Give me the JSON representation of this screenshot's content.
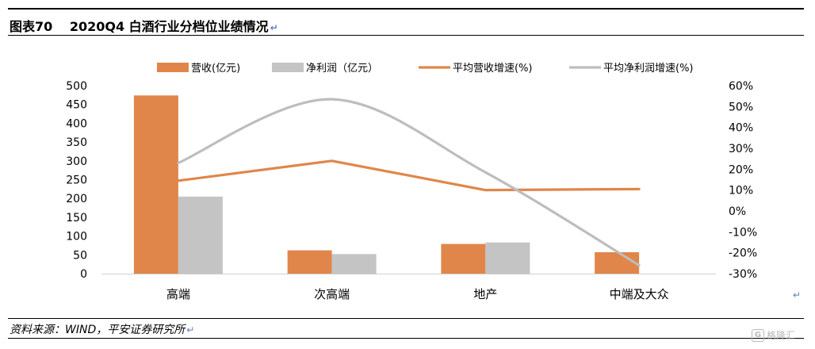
{
  "header": {
    "title": "图表70　 2020Q4 白酒行业分档位业绩情况"
  },
  "footer": {
    "source": "资料来源：WIND，平安证券研究所"
  },
  "watermark": {
    "text": "格隆汇"
  },
  "colors": {
    "revenue": "#E0864A",
    "profit": "#C4C4C4",
    "rev_growth": "#E0864A",
    "profit_growth": "#BDBDBD"
  },
  "chart_data": {
    "type": "bar+line",
    "categories": [
      "高端",
      "次高端",
      "地产",
      "中端及大众"
    ],
    "series": [
      {
        "name": "营收(亿元)",
        "type": "bar",
        "axis": "left",
        "values": [
          474,
          62,
          79,
          57
        ]
      },
      {
        "name": "净利润（亿元）",
        "type": "bar",
        "axis": "left",
        "values": [
          205,
          52,
          83,
          0
        ]
      },
      {
        "name": "平均营收增速(%)",
        "type": "line",
        "axis": "right",
        "values": [
          14.5,
          24,
          10,
          10.5
        ]
      },
      {
        "name": "平均净利润增速(%)",
        "type": "line",
        "axis": "right",
        "smooth": true,
        "values": [
          23,
          53.5,
          18.5,
          -26
        ]
      }
    ],
    "left_axis": {
      "min": 0,
      "max": 500,
      "ticks": [
        "0",
        "50",
        "100",
        "150",
        "200",
        "250",
        "300",
        "350",
        "400",
        "450",
        "500"
      ]
    },
    "right_axis": {
      "min": -30,
      "max": 60,
      "ticks": [
        "-30%",
        "-20%",
        "-10%",
        "0%",
        "10%",
        "20%",
        "30%",
        "40%",
        "50%",
        "60%"
      ]
    },
    "legend_position": "top",
    "grid": false
  }
}
